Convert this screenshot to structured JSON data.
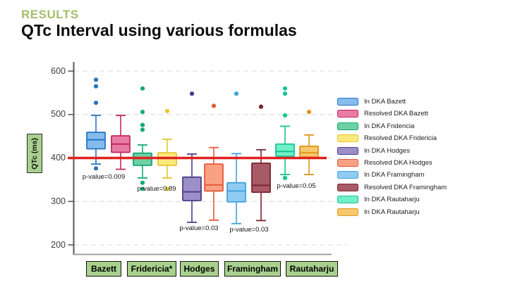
{
  "header": {
    "kicker": "RESULTS",
    "title": "QTc Interval using various formulas"
  },
  "colors": {
    "kicker_green": "#A4BE6B",
    "label_box_green": "#A9D18E",
    "reference_line_red": "#E0221E",
    "axis_dark_gray": "#58595B",
    "axis_light_gray": "#939598",
    "gridline_gray": "#E0E0E0"
  },
  "category_labels": [
    "Bazett",
    "Fridericia*",
    "Hodges",
    "Framingham",
    "Rautaharju"
  ],
  "chart_data": {
    "type": "boxplot",
    "title": "QTc Interval using various formulas",
    "ylabel": "QTc (ms)",
    "ylim": [
      200,
      600
    ],
    "yticks": [
      200,
      300,
      400,
      500,
      600
    ],
    "grid": "horizontal-dashed",
    "legend_position": "right",
    "reference_line": {
      "value": 400,
      "color": "#E0221E"
    },
    "groups": [
      "Bazett",
      "Fridericia*",
      "Hodges",
      "Framingham",
      "Rautaharju"
    ],
    "series": [
      {
        "name": "In DKA Bazett",
        "group": "Bazett",
        "fill": "#85BCEC",
        "stroke": "#2874C6",
        "whisker_low": 386,
        "q1": 421,
        "median": 442,
        "q3": 459,
        "whisker_high": 498,
        "outliers": [
          580,
          565,
          527,
          376
        ]
      },
      {
        "name": "Resolved DKA Bazett",
        "group": "Bazett",
        "fill": "#E87CA4",
        "stroke": "#C2285E",
        "whisker_low": 374,
        "q1": 413,
        "median": 432,
        "q3": 451,
        "whisker_high": 498,
        "outliers": []
      },
      {
        "name": "In DKA Fridericia",
        "group": "Fridericia*",
        "fill": "#6FD0A6",
        "stroke": "#12A878",
        "whisker_low": 354,
        "q1": 383,
        "median": 399,
        "q3": 411,
        "whisker_high": 430,
        "outliers": [
          560,
          506,
          476,
          465,
          343,
          329
        ]
      },
      {
        "name": "Resolved DKA Fridericia",
        "group": "Fridericia*",
        "fill": "#FBE97C",
        "stroke": "#E5C62E",
        "whisker_low": 354,
        "q1": 383,
        "median": 400,
        "q3": 412,
        "whisker_high": 443,
        "outliers": [
          508,
          329
        ]
      },
      {
        "name": "In DKA Hodges",
        "group": "Hodges",
        "fill": "#9C8FC7",
        "stroke": "#4A3E8E",
        "whisker_low": 252,
        "q1": 302,
        "median": 322,
        "q3": 356,
        "whisker_high": 409,
        "outliers": [
          548
        ]
      },
      {
        "name": "Resolved DKA Hodges",
        "group": "Hodges",
        "fill": "#F9A183",
        "stroke": "#E45A38",
        "whisker_low": 257,
        "q1": 324,
        "median": 338,
        "q3": 386,
        "whisker_high": 424,
        "outliers": [
          520
        ]
      },
      {
        "name": "In DKA Framingham",
        "group": "Framingham",
        "fill": "#90CBF2",
        "stroke": "#42A4E0",
        "whisker_low": 249,
        "q1": 299,
        "median": 324,
        "q3": 343,
        "whisker_high": 410,
        "outliers": [
          548
        ]
      },
      {
        "name": "Resolved DKA Framingham",
        "group": "Framingham",
        "fill": "#A85A66",
        "stroke": "#7A2430",
        "whisker_low": 256,
        "q1": 321,
        "median": 337,
        "q3": 388,
        "whisker_high": 419,
        "outliers": [
          518
        ]
      },
      {
        "name": "In DKA Rautaharju",
        "group": "Rautaharju",
        "fill": "#70EFC8",
        "stroke": "#18C493",
        "whisker_low": 362,
        "q1": 404,
        "median": 415,
        "q3": 432,
        "whisker_high": 473,
        "outliers": [
          560,
          548,
          498,
          354
        ]
      },
      {
        "name": "In DKA Rautaharju",
        "group": "Rautaharju",
        "fill": "#F7C96E",
        "stroke": "#E0941E",
        "whisker_low": 362,
        "q1": 402,
        "median": 412,
        "q3": 427,
        "whisker_high": 453,
        "outliers": [
          506
        ]
      }
    ],
    "legend": [
      "In DKA Bazett",
      "Resolved DKA Bazett",
      "In DKA Fridericia",
      "Resolved DKA Fridericia",
      "In DKA Hodges",
      "Resolved DKA Hodges",
      "In DKA Framingham",
      "Resolved DKA Framingham",
      "In DKA Rautaharju",
      "In DKA Rautaharju"
    ],
    "p_values": [
      {
        "group": "Bazett",
        "label": "p-value=0.009"
      },
      {
        "group": "Fridericia*",
        "label": "p-value=0.89"
      },
      {
        "group": "Hodges",
        "label": "p-value=0.03"
      },
      {
        "group": "Framingham",
        "label": "p-value=0.03"
      },
      {
        "group": "Rautaharju",
        "label": "p-value=0.05"
      }
    ]
  }
}
